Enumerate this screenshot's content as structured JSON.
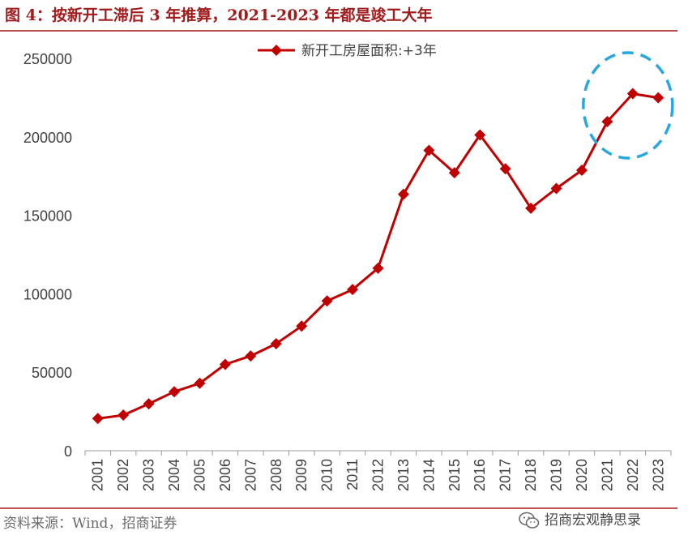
{
  "header": {
    "title": "图 4：按新开工滞后 3 年推算，2021-2023 年都是竣工大年"
  },
  "footer": {
    "source": "资料来源：Wind，招商证券",
    "brand": "招商宏观静思录"
  },
  "colors": {
    "series": "#c00000",
    "highlight": "#29a8e0",
    "rule": "#c0504d",
    "title": "#a11d1d"
  },
  "chart_data": {
    "type": "line",
    "title": "",
    "xlabel": "",
    "ylabel": "",
    "categories": [
      "2001",
      "2002",
      "2003",
      "2004",
      "2005",
      "2006",
      "2007",
      "2008",
      "2009",
      "2010",
      "2011",
      "2012",
      "2013",
      "2014",
      "2015",
      "2016",
      "2017",
      "2018",
      "2019",
      "2020",
      "2021",
      "2022",
      "2023"
    ],
    "series": [
      {
        "name": "新开工房屋面积:+3年",
        "values": [
          20500,
          22700,
          29900,
          37600,
          43000,
          55000,
          60400,
          68200,
          79400,
          95400,
          102700,
          116300,
          163400,
          191400,
          177100,
          201200,
          179600,
          154500,
          167100,
          178700,
          209700,
          227500,
          224900
        ]
      }
    ],
    "yticks": [
      "0",
      "50000",
      "100000",
      "150000",
      "200000",
      "250000"
    ],
    "ylim": [
      0,
      250000
    ],
    "legend_position": "top-center",
    "annotation": {
      "type": "dashed-ellipse",
      "around": [
        "2021",
        "2022",
        "2023"
      ]
    }
  }
}
